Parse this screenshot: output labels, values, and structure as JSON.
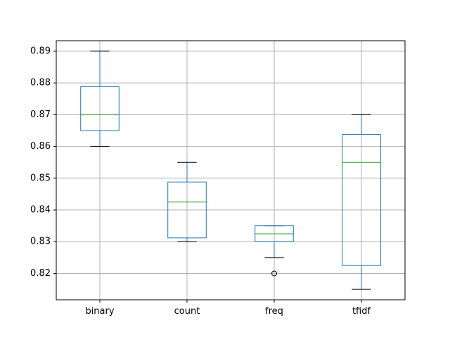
{
  "chart_data": {
    "type": "boxplot",
    "categories": [
      "binary",
      "count",
      "freq",
      "tfidf"
    ],
    "boxes": [
      {
        "name": "binary",
        "whislo": 0.86,
        "q1": 0.865,
        "median": 0.87,
        "q3": 0.8788,
        "whishi": 0.89,
        "fliers": []
      },
      {
        "name": "count",
        "whislo": 0.83,
        "q1": 0.8312,
        "median": 0.8425,
        "q3": 0.8488,
        "whishi": 0.855,
        "fliers": []
      },
      {
        "name": "freq",
        "whislo": 0.825,
        "q1": 0.83,
        "median": 0.8325,
        "q3": 0.835,
        "whishi": 0.835,
        "fliers": [
          0.82
        ]
      },
      {
        "name": "tfidf",
        "whislo": 0.815,
        "q1": 0.8225,
        "median": 0.855,
        "q3": 0.8638,
        "whishi": 0.87,
        "fliers": []
      }
    ],
    "yticks": [
      "0.82",
      "0.83",
      "0.84",
      "0.85",
      "0.86",
      "0.87",
      "0.88",
      "0.89"
    ],
    "ylim": [
      0.8117,
      0.8933
    ],
    "grid": true,
    "colors": {
      "box": "#1f77b4",
      "median": "#2ca02c",
      "whisker_cap": "#000000",
      "grid": "#b0b0b0",
      "axes": "#000000"
    }
  }
}
